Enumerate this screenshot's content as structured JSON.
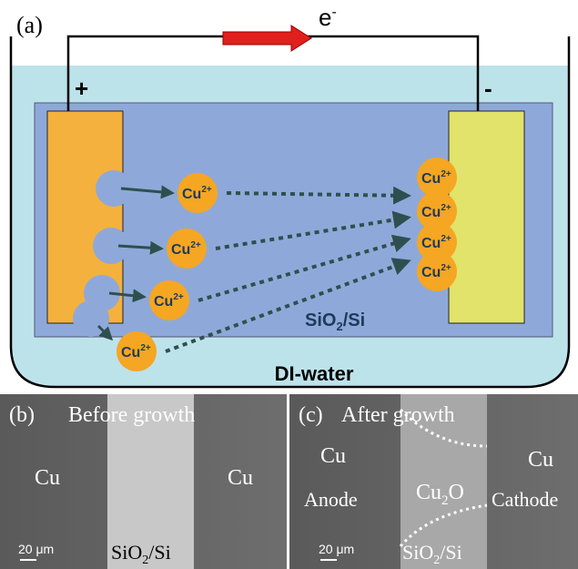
{
  "panel_a": {
    "label": "(a)",
    "electron": {
      "base": "e",
      "sup": "-"
    },
    "anode_sign": "+",
    "cathode_sign": "-",
    "ions": [
      {
        "base": "Cu",
        "sup": "2+"
      },
      {
        "base": "Cu",
        "sup": "2+"
      },
      {
        "base": "Cu",
        "sup": "2+"
      },
      {
        "base": "Cu",
        "sup": "2+"
      },
      {
        "base": "Cu",
        "sup": "2+"
      },
      {
        "base": "Cu",
        "sup": "2+"
      },
      {
        "base": "Cu",
        "sup": "2+"
      },
      {
        "base": "Cu",
        "sup": "2+"
      }
    ],
    "substrate": {
      "base": "SiO",
      "sub": "2",
      "rest": "/Si"
    },
    "medium": "DI-water"
  },
  "panel_b": {
    "label": "(b)",
    "title": "Before growth",
    "left": "Cu",
    "right": "Cu",
    "scale": "20 μm",
    "substrate": {
      "base": "SiO",
      "sub": "2",
      "rest": "/Si"
    }
  },
  "panel_c": {
    "label": "(c)",
    "title": "After growth",
    "left": "Cu",
    "left_role": "Anode",
    "middle": {
      "base": "Cu",
      "sub": "2",
      "rest": "O"
    },
    "right": "Cu",
    "right_role": "Cathode",
    "scale": "20 μm",
    "substrate": {
      "base": "SiO",
      "sub": "2",
      "rest": "/Si"
    }
  }
}
